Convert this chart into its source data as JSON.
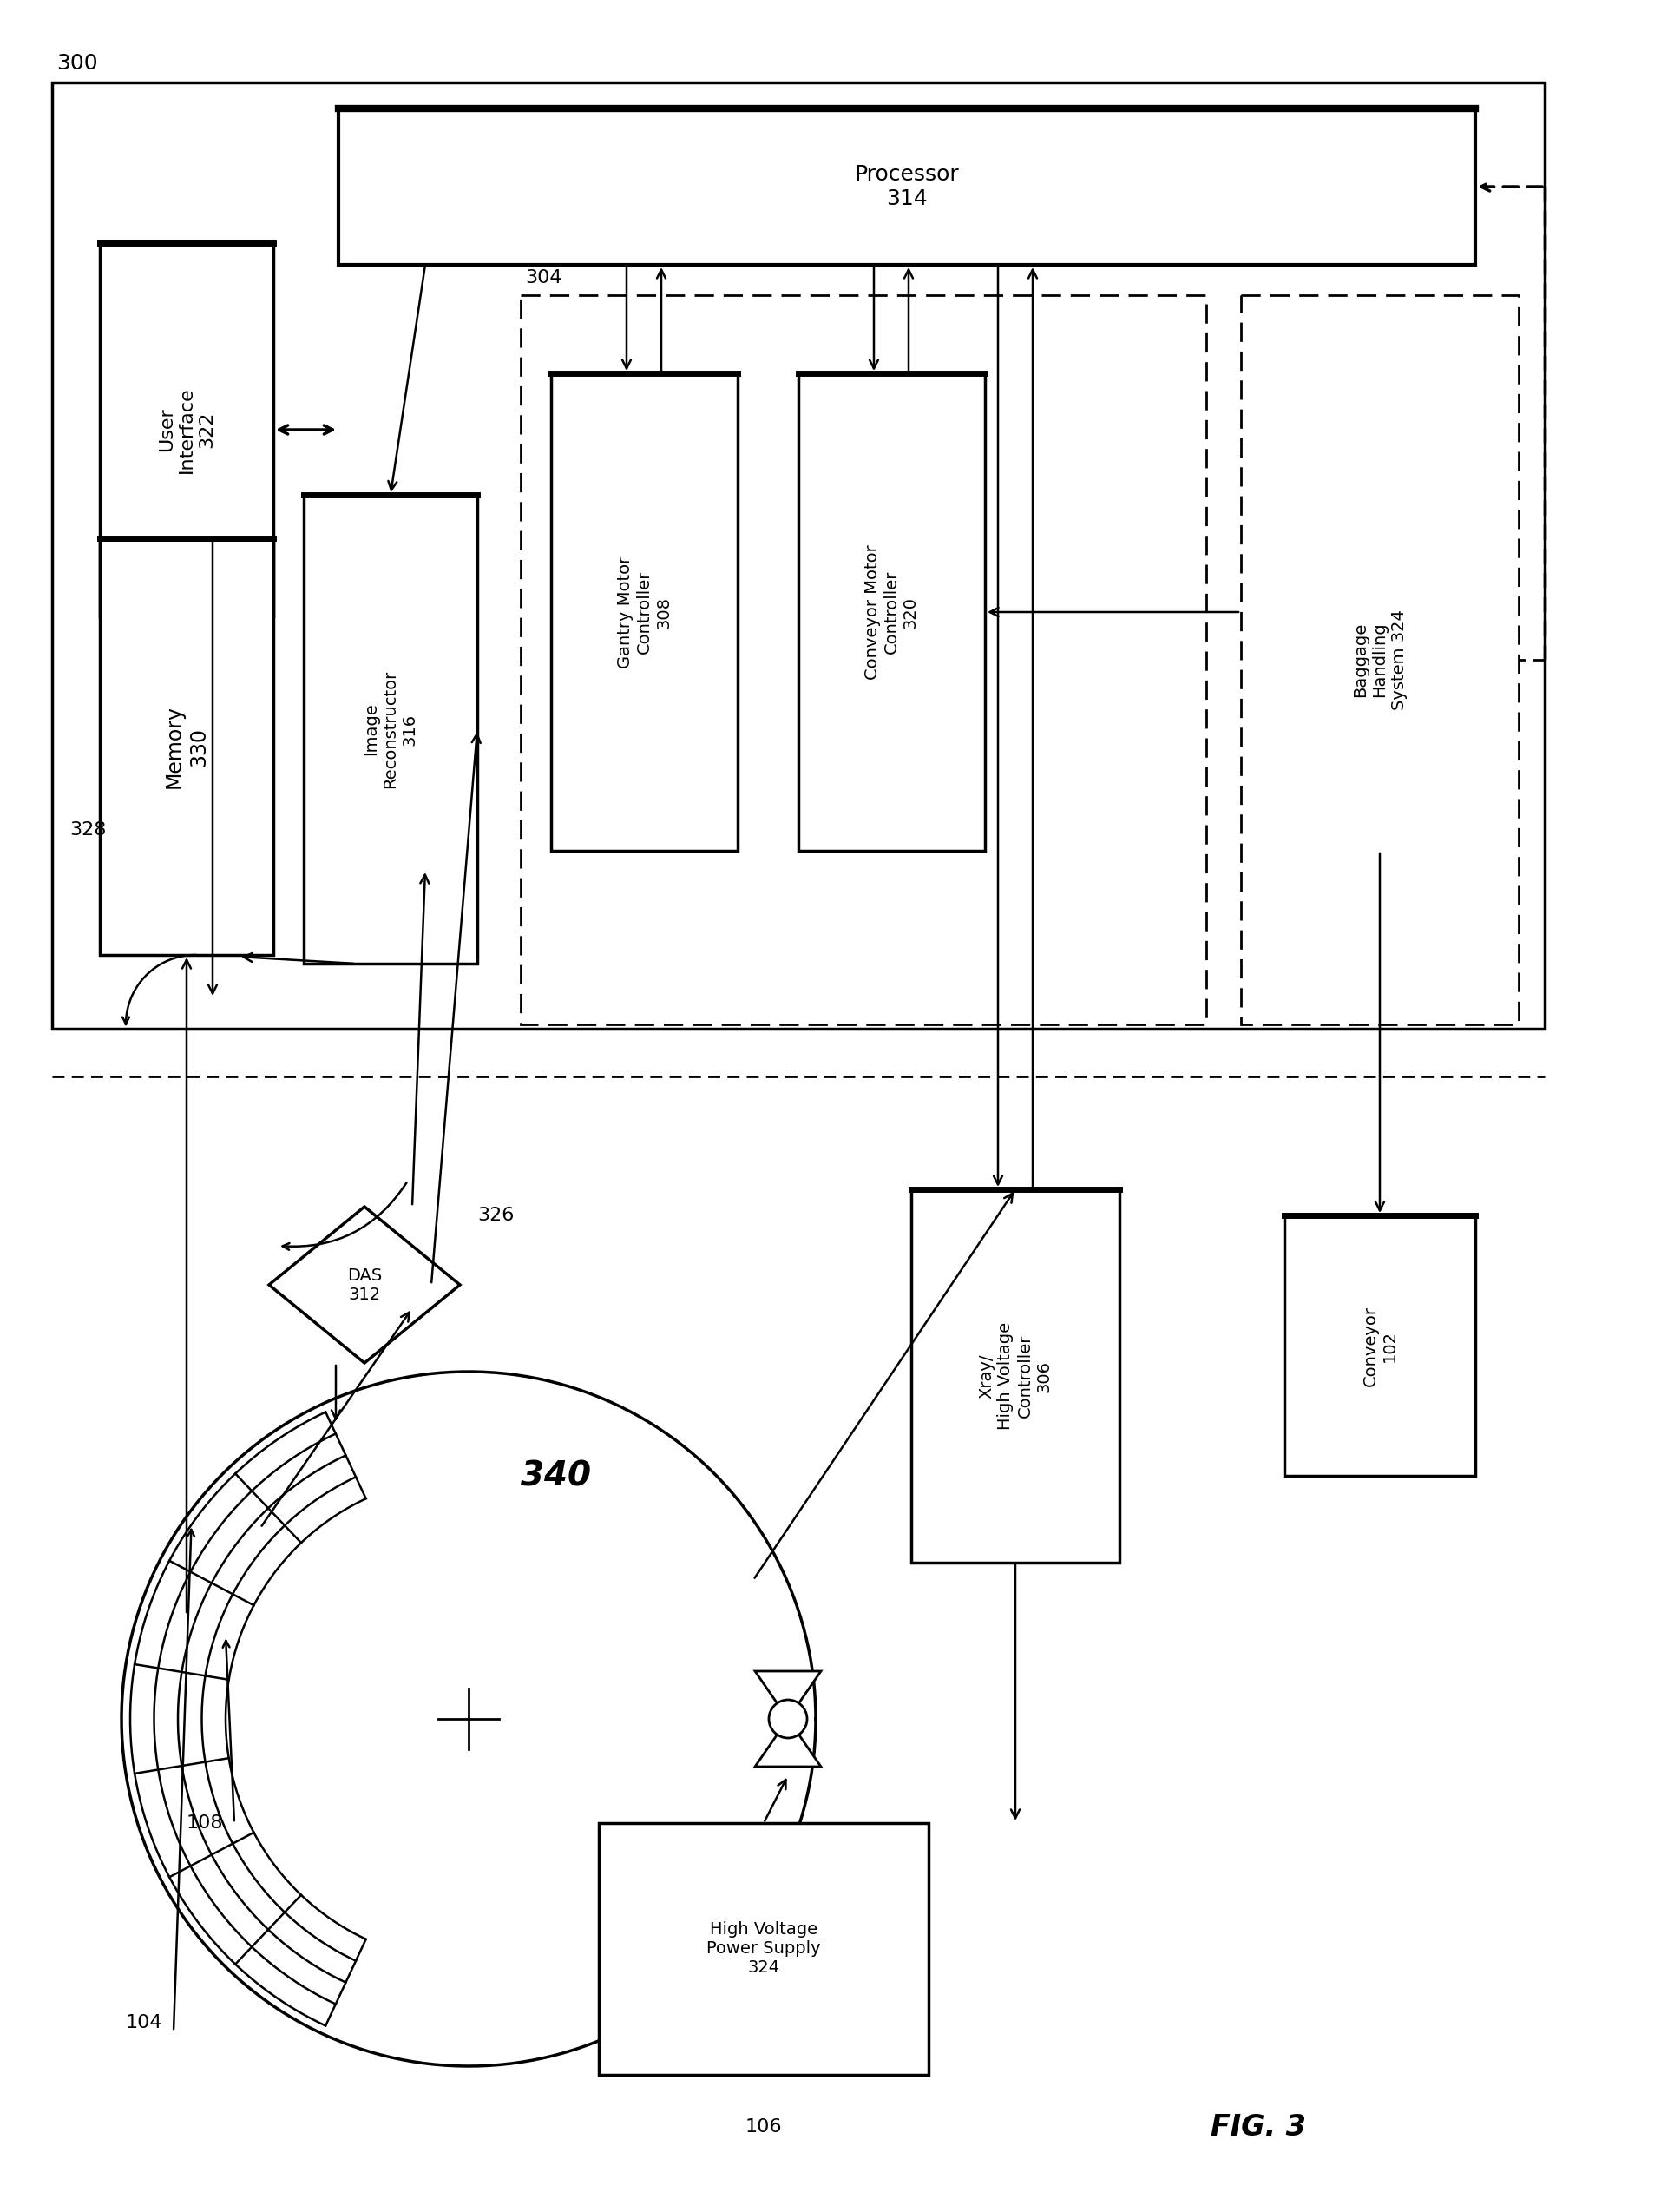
{
  "fig_width": 19.14,
  "fig_height": 25.48,
  "bg_color": "#ffffff",
  "components": {
    "processor": {
      "label": "Processor\n314"
    },
    "user_interface": {
      "label": "User\nInterface\n322"
    },
    "memory": {
      "label": "Memory\n330"
    },
    "image_reconstructor": {
      "label": "Image\nReconstructor\n316"
    },
    "gantry_motor": {
      "label": "Gantry Motor\nController\n308"
    },
    "conveyor_motor": {
      "label": "Conveyor Motor\nController\n320"
    },
    "baggage_handling": {
      "label": "Baggage\nHandling\nSystem 324"
    },
    "xray_hv_controller": {
      "label": "Xray/\nHigh Voltage\nController\n306"
    },
    "conveyor_102": {
      "label": "Conveyor\n102"
    },
    "hv_power_supply": {
      "label": "High Voltage\nPower Supply\n324"
    },
    "das": {
      "label": "DAS\n312"
    }
  },
  "labels": {
    "outer_box": "300",
    "dashed_box": "304",
    "gantry_label": "340",
    "label_328": "328",
    "label_326": "326",
    "label_108": "108",
    "label_104": "104",
    "label_106": "106",
    "fig_label": "FIG. 3"
  }
}
